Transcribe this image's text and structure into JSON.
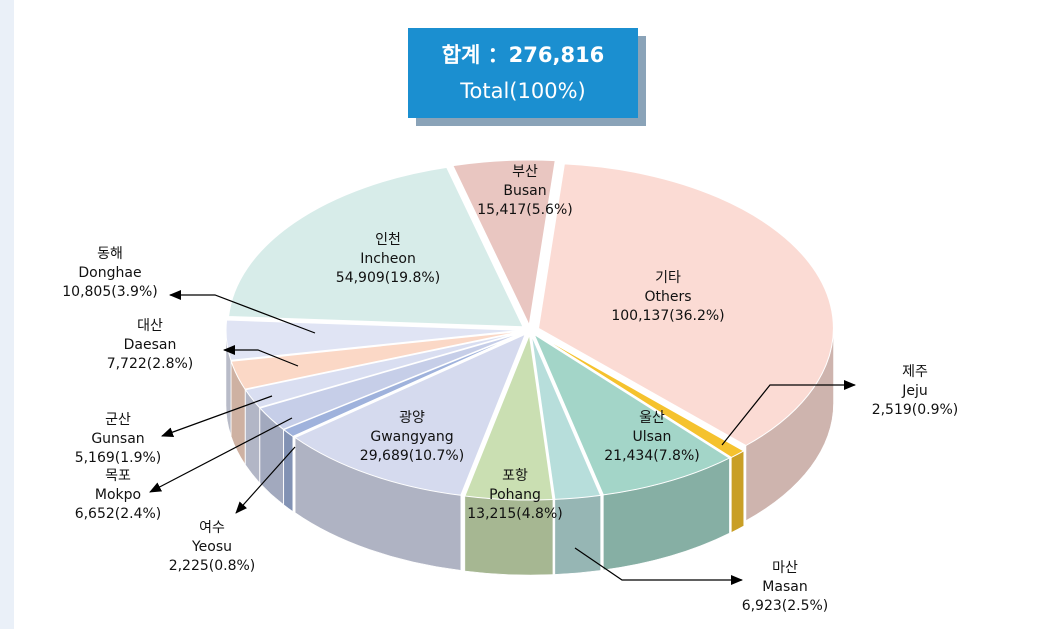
{
  "chart_data": {
    "type": "pie3d",
    "title": "합계 ：276,816",
    "subtitle": "Total(100%)",
    "categories": [
      "부산",
      "기타",
      "제주",
      "울산",
      "마산",
      "포항",
      "광양",
      "여수",
      "목포",
      "군산",
      "대산",
      "동해",
      "인천"
    ],
    "categories_en": [
      "Busan",
      "Others",
      "Jeju",
      "Ulsan",
      "Masan",
      "Pohang",
      "Gwangyang",
      "Yeosu",
      "Mokpo",
      "Gunsan",
      "Daesan",
      "Donghae",
      "Incheon"
    ],
    "values": [
      15417,
      100137,
      2519,
      21434,
      6923,
      13215,
      29689,
      2225,
      6652,
      5169,
      7722,
      10805,
      54909
    ],
    "value_labels": [
      "15,417(5.6%)",
      "100,137(36.2%)",
      "2,519(0.9%)",
      "21,434(7.8%)",
      "6,923(2.5%)",
      "13,215(4.8%)",
      "29,689(10.7%)",
      "2,225(0.8%)",
      "6,652(2.4%)",
      "5,169(1.9%)",
      "7,722(2.8%)",
      "10,805(3.9%)",
      "54,909(19.8%)"
    ],
    "colors": [
      "#e9c6c1",
      "#fbdbd4",
      "#f5c22e",
      "#a3d5c8",
      "#b7dedb",
      "#cadfb2",
      "#d5daee",
      "#9fb2dc",
      "#c6cee8",
      "#d9def1",
      "#fbd8c6",
      "#e0e4f4",
      "#d7ece9"
    ]
  }
}
